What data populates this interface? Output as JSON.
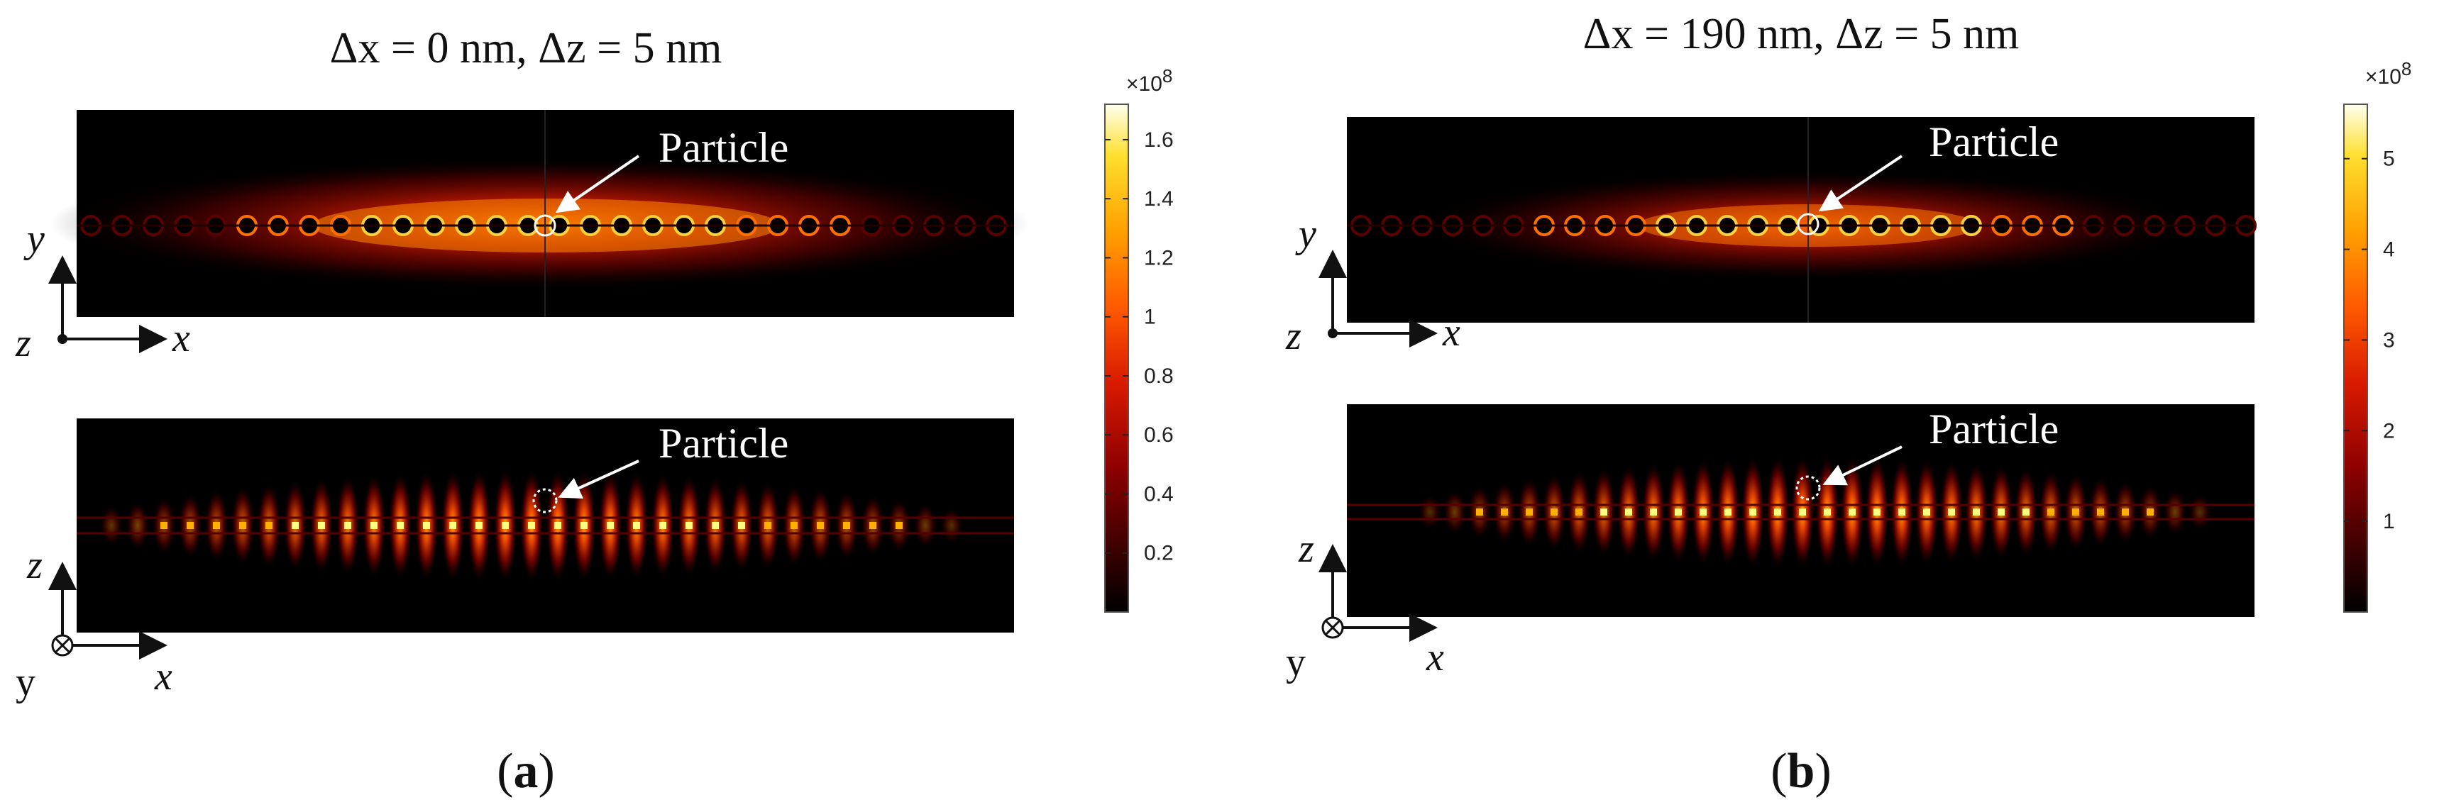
{
  "panels": [
    {
      "id": "a",
      "title": "Δx = 0 nm, Δz = 5 nm",
      "top_map": {
        "annotation": "Particle",
        "axes": {
          "vertical": "y",
          "horizontal": "x",
          "out_of_plane": "z"
        }
      },
      "bottom_map": {
        "annotation": "Particle",
        "axes": {
          "vertical": "z",
          "horizontal": "x",
          "out_of_plane": "y"
        }
      },
      "colorbar": {
        "exponent_label": "×10",
        "exponent_power": "8",
        "ticks": [
          "1.6",
          "1.4",
          "1.2",
          "1",
          "0.8",
          "0.6",
          "0.4",
          "0.2"
        ],
        "tick_values": [
          1.6,
          1.4,
          1.2,
          1.0,
          0.8,
          0.6,
          0.4,
          0.2
        ],
        "range": [
          0,
          1.72
        ]
      },
      "panel_label": {
        "open": "(",
        "letter": "a",
        "close": ")"
      }
    },
    {
      "id": "b",
      "title": "Δx = 190 nm, Δz = 5 nm",
      "top_map": {
        "annotation": "Particle",
        "axes": {
          "vertical": "y",
          "horizontal": "x",
          "out_of_plane": "z"
        }
      },
      "bottom_map": {
        "annotation": "Particle",
        "axes": {
          "vertical": "z",
          "horizontal": "x",
          "out_of_plane": "y"
        }
      },
      "colorbar": {
        "exponent_label": "×10",
        "exponent_power": "8",
        "ticks": [
          "5",
          "4",
          "3",
          "2",
          "1"
        ],
        "tick_values": [
          5,
          4,
          3,
          2,
          1
        ],
        "range": [
          0,
          5.6
        ]
      },
      "panel_label": {
        "open": "(",
        "letter": "b",
        "close": ")"
      }
    }
  ],
  "colors": {
    "map_background": "#000000",
    "colormap": [
      "#000000",
      "#3a0000",
      "#8b0000",
      "#d81a00",
      "#ff5a00",
      "#ffa000",
      "#ffe030",
      "#fffff0"
    ],
    "annotation": "#ffffff"
  }
}
